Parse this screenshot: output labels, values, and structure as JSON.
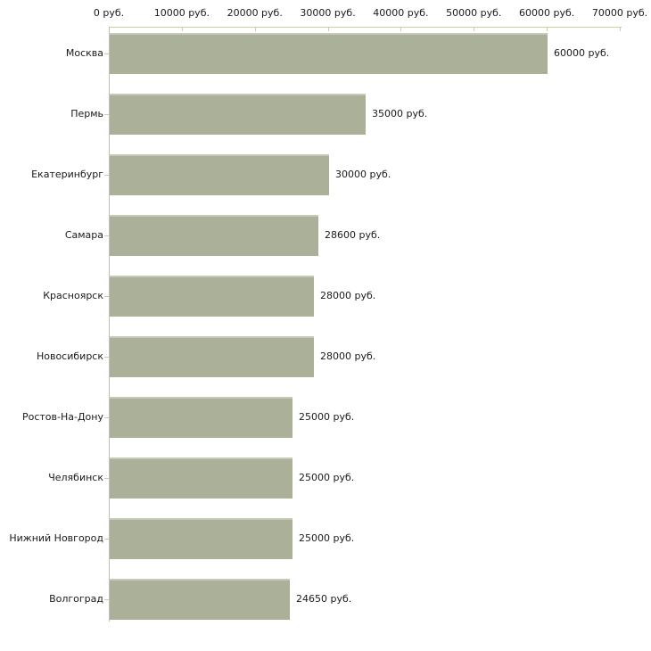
{
  "chart_data": {
    "type": "bar",
    "orientation": "horizontal",
    "title": "",
    "categories": [
      "Москва",
      "Пермь",
      "Екатеринбург",
      "Самара",
      "Красноярск",
      "Новосибирск",
      "Ростов-На-Дону",
      "Челябинск",
      "Нижний Новгород",
      "Волгоград"
    ],
    "values": [
      60000,
      35000,
      30000,
      28600,
      28000,
      28000,
      25000,
      25000,
      25000,
      24650
    ],
    "value_labels": [
      "60000 руб.",
      "35000 руб.",
      "30000 руб.",
      "28600 руб.",
      "28000 руб.",
      "28000 руб.",
      "25000 руб.",
      "25000 руб.",
      "25000 руб.",
      "24650 руб."
    ],
    "x_ticks": [
      0,
      10000,
      20000,
      30000,
      40000,
      50000,
      60000,
      70000
    ],
    "x_tick_labels": [
      "0 руб.",
      "10000 руб.",
      "20000 руб.",
      "30000 руб.",
      "40000 руб.",
      "50000 руб.",
      "60000 руб.",
      "70000 руб."
    ],
    "xlim": [
      0,
      70000
    ],
    "unit": "руб.",
    "grid": false,
    "legend": false,
    "colors": {
      "bar_fill": "#abb099",
      "bar_top_edge": "#c6c9b8",
      "x_axis_line": "#cfcda0",
      "y_axis_line": "#c0c0c0",
      "tick_mark": "#cfcda0",
      "label_text": "#1a1a1a",
      "background": "#ffffff"
    }
  }
}
